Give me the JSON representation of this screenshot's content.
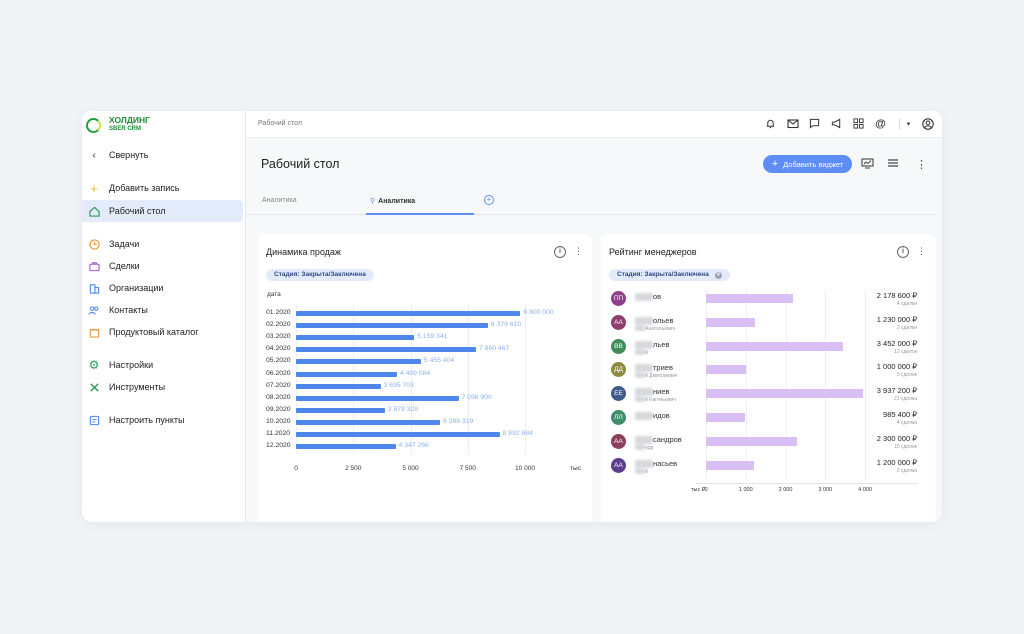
{
  "brand": {
    "title": "ХОЛДИНГ",
    "subtitle": "SBER CRM",
    "accent": "#21a038"
  },
  "sidebar": {
    "collapse_label": "Свернуть",
    "items": [
      {
        "label": "Добавить запись",
        "icon": "plus-icon"
      },
      {
        "label": "Рабочий стол",
        "icon": "home-icon",
        "active": true
      },
      {
        "label": "Задачи",
        "icon": "clock-icon"
      },
      {
        "label": "Сделки",
        "icon": "briefcase-icon"
      },
      {
        "label": "Организации",
        "icon": "building-icon"
      },
      {
        "label": "Контакты",
        "icon": "people-icon"
      },
      {
        "label": "Продуктовый каталог",
        "icon": "box-icon"
      },
      {
        "label": "Настройки",
        "icon": "gear-icon"
      },
      {
        "label": "Инструменты",
        "icon": "tools-icon"
      },
      {
        "label": "Настроить пункты",
        "icon": "customize-icon"
      }
    ]
  },
  "topbar": {
    "breadcrumb": "Рабочий стол"
  },
  "header": {
    "title": "Рабочий стол",
    "add_widget_label": "Добавить виджет"
  },
  "tabs": [
    {
      "label": "Аналитика",
      "active": false
    },
    {
      "label": "Аналитика",
      "active": true,
      "pinned": true
    }
  ],
  "sales_widget": {
    "title": "Динамика продаж",
    "filter_chip": "Стадия: Закрыта/Заключена",
    "chart_data": {
      "type": "bar",
      "orientation": "horizontal",
      "ylabel": "дата",
      "xlabel": "тыс",
      "categories": [
        "01.2020",
        "02.2020",
        "03.2020",
        "04.2020",
        "05.2020",
        "06.2020",
        "07.2020",
        "08.2020",
        "09.2020",
        "10.2020",
        "11.2020",
        "12.2020"
      ],
      "values": [
        9800000,
        8379610,
        5159341,
        7860467,
        5455404,
        4409084,
        3695703,
        7096900,
        3879329,
        6289319,
        8892884,
        4347266
      ],
      "value_labels": [
        "9 800 000",
        "8 379 610",
        "5 159 341",
        "7 860 467",
        "5 455 404",
        "4 409 084",
        "3 695 703",
        "7 096 900",
        "3 879 329",
        "6 289 319",
        "8 892 884",
        "4 347 266"
      ],
      "xticks": [
        "0",
        "2 500",
        "5 000",
        "7 500",
        "10 000"
      ],
      "xlim": [
        0,
        11500
      ],
      "color": "#4f86ec"
    }
  },
  "managers_widget": {
    "title": "Рейтинг менеджеров",
    "filter_chip": "Стадия: Закрыта/Заключена",
    "chart_data": {
      "type": "bar",
      "orientation": "horizontal",
      "xlabel": "тыс ₽",
      "xticks": [
        "0",
        "1 000",
        "2 000",
        "3 000",
        "4 000"
      ],
      "xlim": [
        0,
        4000
      ],
      "color": "#d9bff4",
      "rows": [
        {
          "initials": "ПП",
          "color": "#8e3f8c",
          "name": "ов",
          "sub": "",
          "value": 2178.6,
          "amount": "2 178 600 ₽",
          "deals": "4 сделки"
        },
        {
          "initials": "АА",
          "color": "#8e3f6e",
          "name": "ольев",
          "sub": "Анатольевич",
          "value": 1230,
          "amount": "1 230 000 ₽",
          "deals": "2 сделки"
        },
        {
          "initials": "ВВ",
          "color": "#3f8e57",
          "name": "льев",
          "sub": "й",
          "value": 3452,
          "amount": "3 452 000 ₽",
          "deals": "12 сделок"
        },
        {
          "initials": "ДД",
          "color": "#8e8a3f",
          "name": "триев",
          "sub": "й Дмитриевич",
          "value": 1000,
          "amount": "1 000 000 ₽",
          "deals": "5 сделок"
        },
        {
          "initials": "ЕЕ",
          "color": "#3f5b8e",
          "name": "ниев",
          "sub": "й Евгеньевич",
          "value": 3937.2,
          "amount": "3 937 200 ₽",
          "deals": "21 сделка"
        },
        {
          "initials": "ЛЛ",
          "color": "#3f8e6b",
          "name": "идов",
          "sub": "",
          "value": 985.4,
          "amount": "985 400 ₽",
          "deals": "4 сделки"
        },
        {
          "initials": "АА",
          "color": "#8e3f5b",
          "name": "сандров",
          "sub": "ндр",
          "value": 2300,
          "amount": "2 300 000 ₽",
          "deals": "10 сделок"
        },
        {
          "initials": "АА",
          "color": "#5b3f8e",
          "name": "насьев",
          "sub": "й",
          "value": 1200,
          "amount": "1 200 000 ₽",
          "deals": "2 сделки"
        }
      ]
    }
  }
}
